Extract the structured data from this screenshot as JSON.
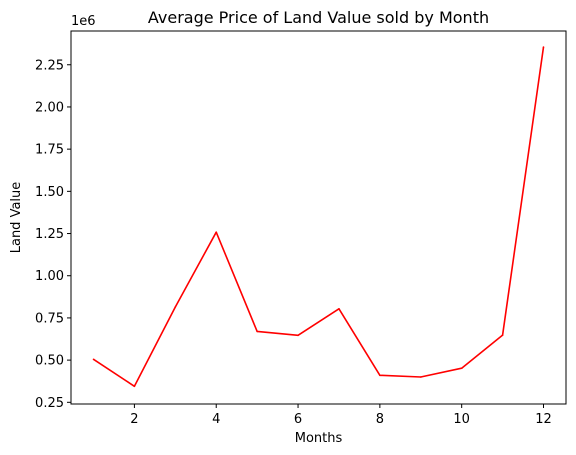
{
  "chart_data": {
    "type": "line",
    "title": "Average Price of Land Value sold by Month",
    "xlabel": "Months",
    "ylabel": "Land Value",
    "y_offset_label": "1e6",
    "xlim": [
      0.45,
      12.55
    ],
    "ylim": [
      240000,
      2450000
    ],
    "x_ticks": [
      2,
      4,
      6,
      8,
      10,
      12
    ],
    "y_ticks": [
      250000,
      500000,
      750000,
      1000000,
      1250000,
      1500000,
      1750000,
      2000000,
      2250000
    ],
    "y_tick_labels": [
      "0.25",
      "0.50",
      "0.75",
      "1.00",
      "1.25",
      "1.50",
      "1.75",
      "2.00",
      "2.25"
    ],
    "grid": false,
    "series": [
      {
        "color": "#ff0000",
        "x": [
          1,
          2,
          3,
          4,
          5,
          6,
          7,
          8,
          9,
          10,
          11,
          12
        ],
        "values": [
          505000,
          345000,
          815000,
          1258000,
          670000,
          647000,
          804000,
          410000,
          400000,
          452000,
          648000,
          2355000
        ]
      }
    ]
  }
}
